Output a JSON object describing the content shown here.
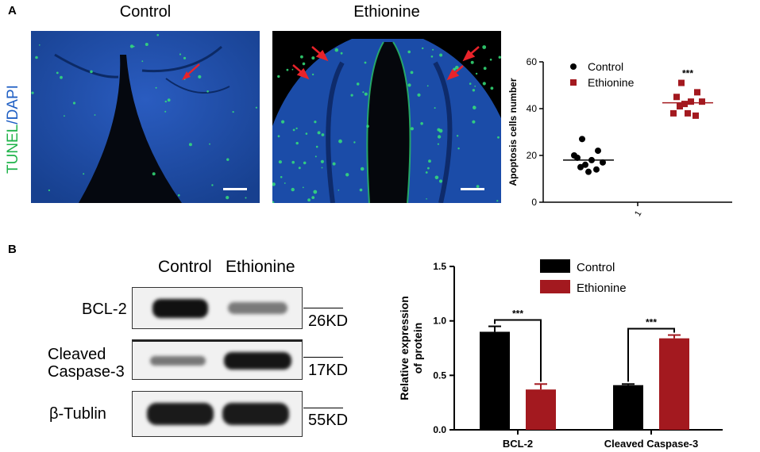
{
  "panel_a": {
    "letter": "A",
    "titles": [
      "Control",
      "Ethionine"
    ],
    "stain_label": {
      "tunel": "TUNEL",
      "sep": "/",
      "dapi": "DAPI"
    },
    "colors": {
      "tunel": "#1fb34a",
      "dapi": "#1f5fc4",
      "arrow": "#e8232a",
      "tissue": "#1b4ca8"
    }
  },
  "panel_b": {
    "letter": "B",
    "lane_labels": [
      "Control",
      "Ethionine"
    ],
    "proteins": [
      "BCL-2",
      "Cleaved\nCaspase-3",
      "β-Tublin"
    ],
    "sizes": [
      "26KD",
      "17KD",
      "55KD"
    ]
  },
  "chart_data": [
    {
      "type": "scatter",
      "ylabel": "Apoptosis cells number",
      "xlabel": "",
      "xtick": "1",
      "ylim": [
        0,
        60
      ],
      "yticks": [
        0,
        20,
        40,
        60
      ],
      "legend_position": "top",
      "significance": "***",
      "series": [
        {
          "name": "Control",
          "color": "#000000",
          "marker": "circle",
          "values": [
            27,
            22,
            19,
            18,
            17,
            16,
            15,
            13,
            14,
            20
          ],
          "mean": 18
        },
        {
          "name": "Ethionine",
          "color": "#a3191f",
          "marker": "square",
          "values": [
            51,
            47,
            45,
            43,
            43,
            42,
            41,
            38,
            37,
            38
          ],
          "mean": 42.5
        }
      ]
    },
    {
      "type": "bar",
      "ylabel": "Relative expression of protein",
      "categories": [
        "BCL-2",
        "Cleaved Caspase-3"
      ],
      "ylim": [
        0,
        1.5
      ],
      "yticks": [
        "0.0",
        "0.5",
        "1.0",
        "1.5"
      ],
      "legend_position": "top-right",
      "significance": [
        "***",
        "***"
      ],
      "series": [
        {
          "name": "Control",
          "color": "#000000",
          "values": [
            0.9,
            0.41
          ],
          "errors": [
            0.05,
            0.01
          ]
        },
        {
          "name": "Ethionine",
          "color": "#a3191f",
          "values": [
            0.37,
            0.84
          ],
          "errors": [
            0.05,
            0.03
          ]
        }
      ]
    }
  ]
}
